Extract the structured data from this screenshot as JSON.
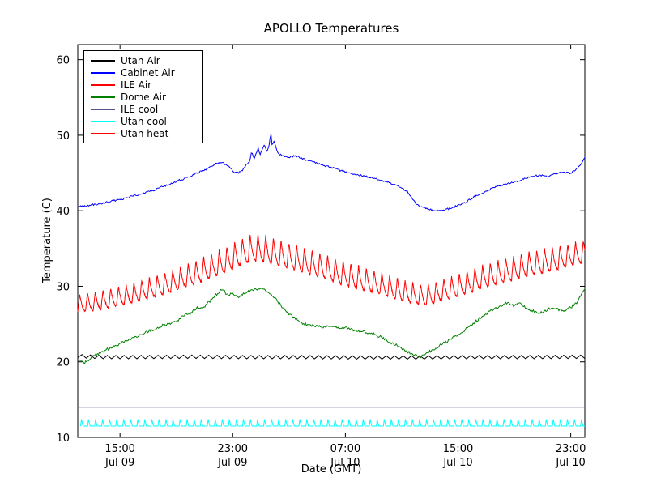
{
  "chart_data": {
    "type": "line",
    "title": "APOLLO Temperatures",
    "xlabel": "Date (GMT)",
    "ylabel": "Temperature (C)",
    "xlim": [
      12,
      48
    ],
    "ylim": [
      10,
      62
    ],
    "yticks": [
      10,
      20,
      30,
      40,
      50,
      60
    ],
    "xticks": [
      {
        "x": 15,
        "time": "15:00",
        "date": "Jul 09"
      },
      {
        "x": 23,
        "time": "23:00",
        "date": "Jul 09"
      },
      {
        "x": 31,
        "time": "07:00",
        "date": "Jul 10"
      },
      {
        "x": 39,
        "time": "15:00",
        "date": "Jul 10"
      },
      {
        "x": 47,
        "time": "23:00",
        "date": "Jul 10"
      }
    ],
    "legend_position": "upper-left",
    "grid": false,
    "series": [
      {
        "name": "Utah Air",
        "color": "#000000",
        "points": [
          [
            12,
            21.0
          ],
          [
            13,
            20.9
          ],
          [
            14,
            20.85
          ],
          [
            16,
            20.85
          ],
          [
            20,
            20.9
          ],
          [
            24,
            20.85
          ],
          [
            28,
            20.85
          ],
          [
            32,
            20.8
          ],
          [
            36,
            20.8
          ],
          [
            40,
            20.85
          ],
          [
            44,
            20.85
          ],
          [
            48,
            20.9
          ]
        ],
        "osc": {
          "type": "tri",
          "amp": 0.45,
          "period": 0.6
        }
      },
      {
        "name": "Cabinet Air",
        "color": "#0000ff",
        "points": [
          [
            12,
            40.6
          ],
          [
            12.5,
            40.6
          ],
          [
            13,
            40.8
          ],
          [
            13.5,
            40.9
          ],
          [
            14,
            41.1
          ],
          [
            14.5,
            41.3
          ],
          [
            15,
            41.5
          ],
          [
            15.5,
            41.7
          ],
          [
            16,
            42.0
          ],
          [
            16.5,
            42.2
          ],
          [
            17,
            42.5
          ],
          [
            17.5,
            42.8
          ],
          [
            18,
            43.2
          ],
          [
            18.5,
            43.5
          ],
          [
            19,
            43.9
          ],
          [
            19.5,
            44.2
          ],
          [
            20,
            44.6
          ],
          [
            20.5,
            45.0
          ],
          [
            21,
            45.4
          ],
          [
            21.5,
            45.9
          ],
          [
            21.9,
            46.3
          ],
          [
            22.2,
            46.4
          ],
          [
            22.5,
            46.1
          ],
          [
            22.8,
            45.7
          ],
          [
            23.1,
            45.1
          ],
          [
            23.4,
            45.0
          ],
          [
            23.7,
            45.4
          ],
          [
            24.0,
            46.2
          ],
          [
            24.2,
            46.6
          ],
          [
            24.35,
            47.9
          ],
          [
            24.5,
            46.9
          ],
          [
            24.65,
            47.4
          ],
          [
            24.8,
            48.3
          ],
          [
            24.95,
            47.5
          ],
          [
            25.1,
            48.0
          ],
          [
            25.25,
            48.8
          ],
          [
            25.4,
            47.8
          ],
          [
            25.55,
            48.3
          ],
          [
            25.7,
            50.4
          ],
          [
            25.8,
            48.6
          ],
          [
            25.95,
            49.3
          ],
          [
            26.1,
            48.0
          ],
          [
            26.3,
            47.5
          ],
          [
            26.6,
            47.2
          ],
          [
            27,
            47.0
          ],
          [
            27.4,
            47.3
          ],
          [
            27.8,
            47.0
          ],
          [
            28.2,
            46.7
          ],
          [
            28.6,
            46.5
          ],
          [
            29,
            46.3
          ],
          [
            29.5,
            46.0
          ],
          [
            30,
            45.7
          ],
          [
            30.5,
            45.4
          ],
          [
            31,
            45.2
          ],
          [
            31.5,
            44.9
          ],
          [
            32,
            44.7
          ],
          [
            32.5,
            44.5
          ],
          [
            33,
            44.3
          ],
          [
            33.5,
            44.0
          ],
          [
            34,
            43.8
          ],
          [
            34.5,
            43.4
          ],
          [
            35,
            43.0
          ],
          [
            35.4,
            42.6
          ],
          [
            35.7,
            41.8
          ],
          [
            36,
            41.0
          ],
          [
            36.3,
            40.6
          ],
          [
            36.7,
            40.3
          ],
          [
            37.2,
            40.1
          ],
          [
            37.8,
            40.0
          ],
          [
            38.4,
            40.3
          ],
          [
            39,
            40.7
          ],
          [
            39.5,
            41.1
          ],
          [
            40,
            41.7
          ],
          [
            40.5,
            42.2
          ],
          [
            41,
            42.6
          ],
          [
            41.5,
            43.0
          ],
          [
            42,
            43.3
          ],
          [
            42.5,
            43.6
          ],
          [
            43,
            43.8
          ],
          [
            43.5,
            44.1
          ],
          [
            44,
            44.4
          ],
          [
            44.5,
            44.6
          ],
          [
            45,
            44.7
          ],
          [
            45.4,
            44.5
          ],
          [
            45.8,
            44.8
          ],
          [
            46.2,
            45.0
          ],
          [
            46.6,
            45.1
          ],
          [
            47,
            45.0
          ],
          [
            47.3,
            45.3
          ],
          [
            47.6,
            45.9
          ],
          [
            48,
            47.0
          ]
        ],
        "osc": {
          "type": "noise",
          "amp": 0.12
        }
      },
      {
        "name": "ILE Air",
        "color": "#ff0000",
        "points": [
          [
            12,
            26.6
          ],
          [
            13,
            26.8
          ],
          [
            14,
            27.1
          ],
          [
            15,
            27.5
          ],
          [
            16,
            27.9
          ],
          [
            17,
            28.4
          ],
          [
            18,
            28.9
          ],
          [
            19,
            29.5
          ],
          [
            20,
            30.1
          ],
          [
            21,
            30.8
          ],
          [
            22,
            31.5
          ],
          [
            23,
            32.3
          ],
          [
            23.8,
            33.0
          ],
          [
            24.5,
            33.4
          ],
          [
            25,
            33.3
          ],
          [
            25.5,
            33.1
          ],
          [
            26,
            32.9
          ],
          [
            27,
            32.4
          ],
          [
            28,
            31.9
          ],
          [
            29,
            31.3
          ],
          [
            30,
            30.7
          ],
          [
            31,
            30.1
          ],
          [
            32,
            29.6
          ],
          [
            33,
            29.2
          ],
          [
            34,
            28.7
          ],
          [
            35,
            28.1
          ],
          [
            36,
            27.7
          ],
          [
            36.6,
            27.5
          ],
          [
            37.2,
            27.7
          ],
          [
            38,
            28.2
          ],
          [
            39,
            28.7
          ],
          [
            40,
            29.3
          ],
          [
            41,
            29.9
          ],
          [
            42,
            30.4
          ],
          [
            43,
            30.9
          ],
          [
            44,
            31.4
          ],
          [
            45,
            31.8
          ],
          [
            46,
            32.2
          ],
          [
            47,
            32.7
          ],
          [
            48,
            33.2
          ]
        ],
        "osc": {
          "type": "sawtooth",
          "period": 0.55,
          "attack": 0.25,
          "amp_points": [
            [
              12,
              2.3
            ],
            [
              16,
              2.6
            ],
            [
              20,
              3.0
            ],
            [
              23,
              3.4
            ],
            [
              25,
              3.6
            ],
            [
              28,
              3.3
            ],
            [
              31,
              3.2
            ],
            [
              34,
              2.9
            ],
            [
              36,
              2.7
            ],
            [
              38,
              2.8
            ],
            [
              40,
              3.0
            ],
            [
              43,
              3.2
            ],
            [
              46,
              3.1
            ],
            [
              48,
              2.9
            ]
          ]
        }
      },
      {
        "name": "Dome Air",
        "color": "#008000",
        "points": [
          [
            12,
            20.1
          ],
          [
            12.5,
            19.9
          ],
          [
            13,
            20.6
          ],
          [
            14,
            21.6
          ],
          [
            15,
            22.4
          ],
          [
            16,
            23.2
          ],
          [
            17,
            24.0
          ],
          [
            18,
            24.8
          ],
          [
            19,
            25.3
          ],
          [
            19.5,
            26.2
          ],
          [
            20,
            26.4
          ],
          [
            20.5,
            27.2
          ],
          [
            21,
            27.3
          ],
          [
            21.5,
            28.3
          ],
          [
            22,
            29.2
          ],
          [
            22.3,
            29.6
          ],
          [
            22.6,
            28.8
          ],
          [
            23,
            29.0
          ],
          [
            23.5,
            28.6
          ],
          [
            24,
            29.3
          ],
          [
            24.5,
            29.5
          ],
          [
            25,
            29.7
          ],
          [
            25.5,
            29.3
          ],
          [
            26,
            28.4
          ],
          [
            26.5,
            27.3
          ],
          [
            27,
            26.3
          ],
          [
            27.5,
            25.6
          ],
          [
            28,
            25.1
          ],
          [
            28.5,
            24.8
          ],
          [
            29,
            24.7
          ],
          [
            30,
            24.6
          ],
          [
            31,
            24.5
          ],
          [
            32,
            24.1
          ],
          [
            33,
            23.7
          ],
          [
            33.5,
            23.3
          ],
          [
            34,
            22.8
          ],
          [
            34.5,
            22.3
          ],
          [
            35,
            21.8
          ],
          [
            35.5,
            21.3
          ],
          [
            36,
            20.9
          ],
          [
            36.3,
            20.6
          ],
          [
            36.6,
            21.0
          ],
          [
            37,
            21.4
          ],
          [
            37.5,
            21.9
          ],
          [
            38,
            22.5
          ],
          [
            39,
            23.6
          ],
          [
            40,
            24.9
          ],
          [
            40.5,
            25.7
          ],
          [
            41,
            26.3
          ],
          [
            41.5,
            27.0
          ],
          [
            42,
            27.4
          ],
          [
            42.5,
            27.8
          ],
          [
            43,
            27.3
          ],
          [
            43.3,
            27.9
          ],
          [
            43.6,
            27.4
          ],
          [
            44,
            27.0
          ],
          [
            44.5,
            26.6
          ],
          [
            45,
            26.5
          ],
          [
            45.5,
            27.1
          ],
          [
            46,
            27.0
          ],
          [
            46.5,
            26.8
          ],
          [
            47,
            27.2
          ],
          [
            47.5,
            28.0
          ],
          [
            48,
            29.8
          ]
        ],
        "osc": {
          "type": "noise",
          "amp": 0.18
        }
      },
      {
        "name": "ILE cool",
        "color": "#555588",
        "points": [
          [
            12,
            14.0
          ],
          [
            48,
            14.0
          ]
        ]
      },
      {
        "name": "Utah cool",
        "color": "#00ffff",
        "points": [
          [
            12.2,
            11.5
          ],
          [
            48,
            11.5
          ]
        ],
        "osc": {
          "type": "spike",
          "period": 0.5,
          "amp": 0.9,
          "attack": 0.12,
          "decay": 0.22
        }
      },
      {
        "name": "Utah heat",
        "color": "#ff0000",
        "points": []
      }
    ]
  }
}
